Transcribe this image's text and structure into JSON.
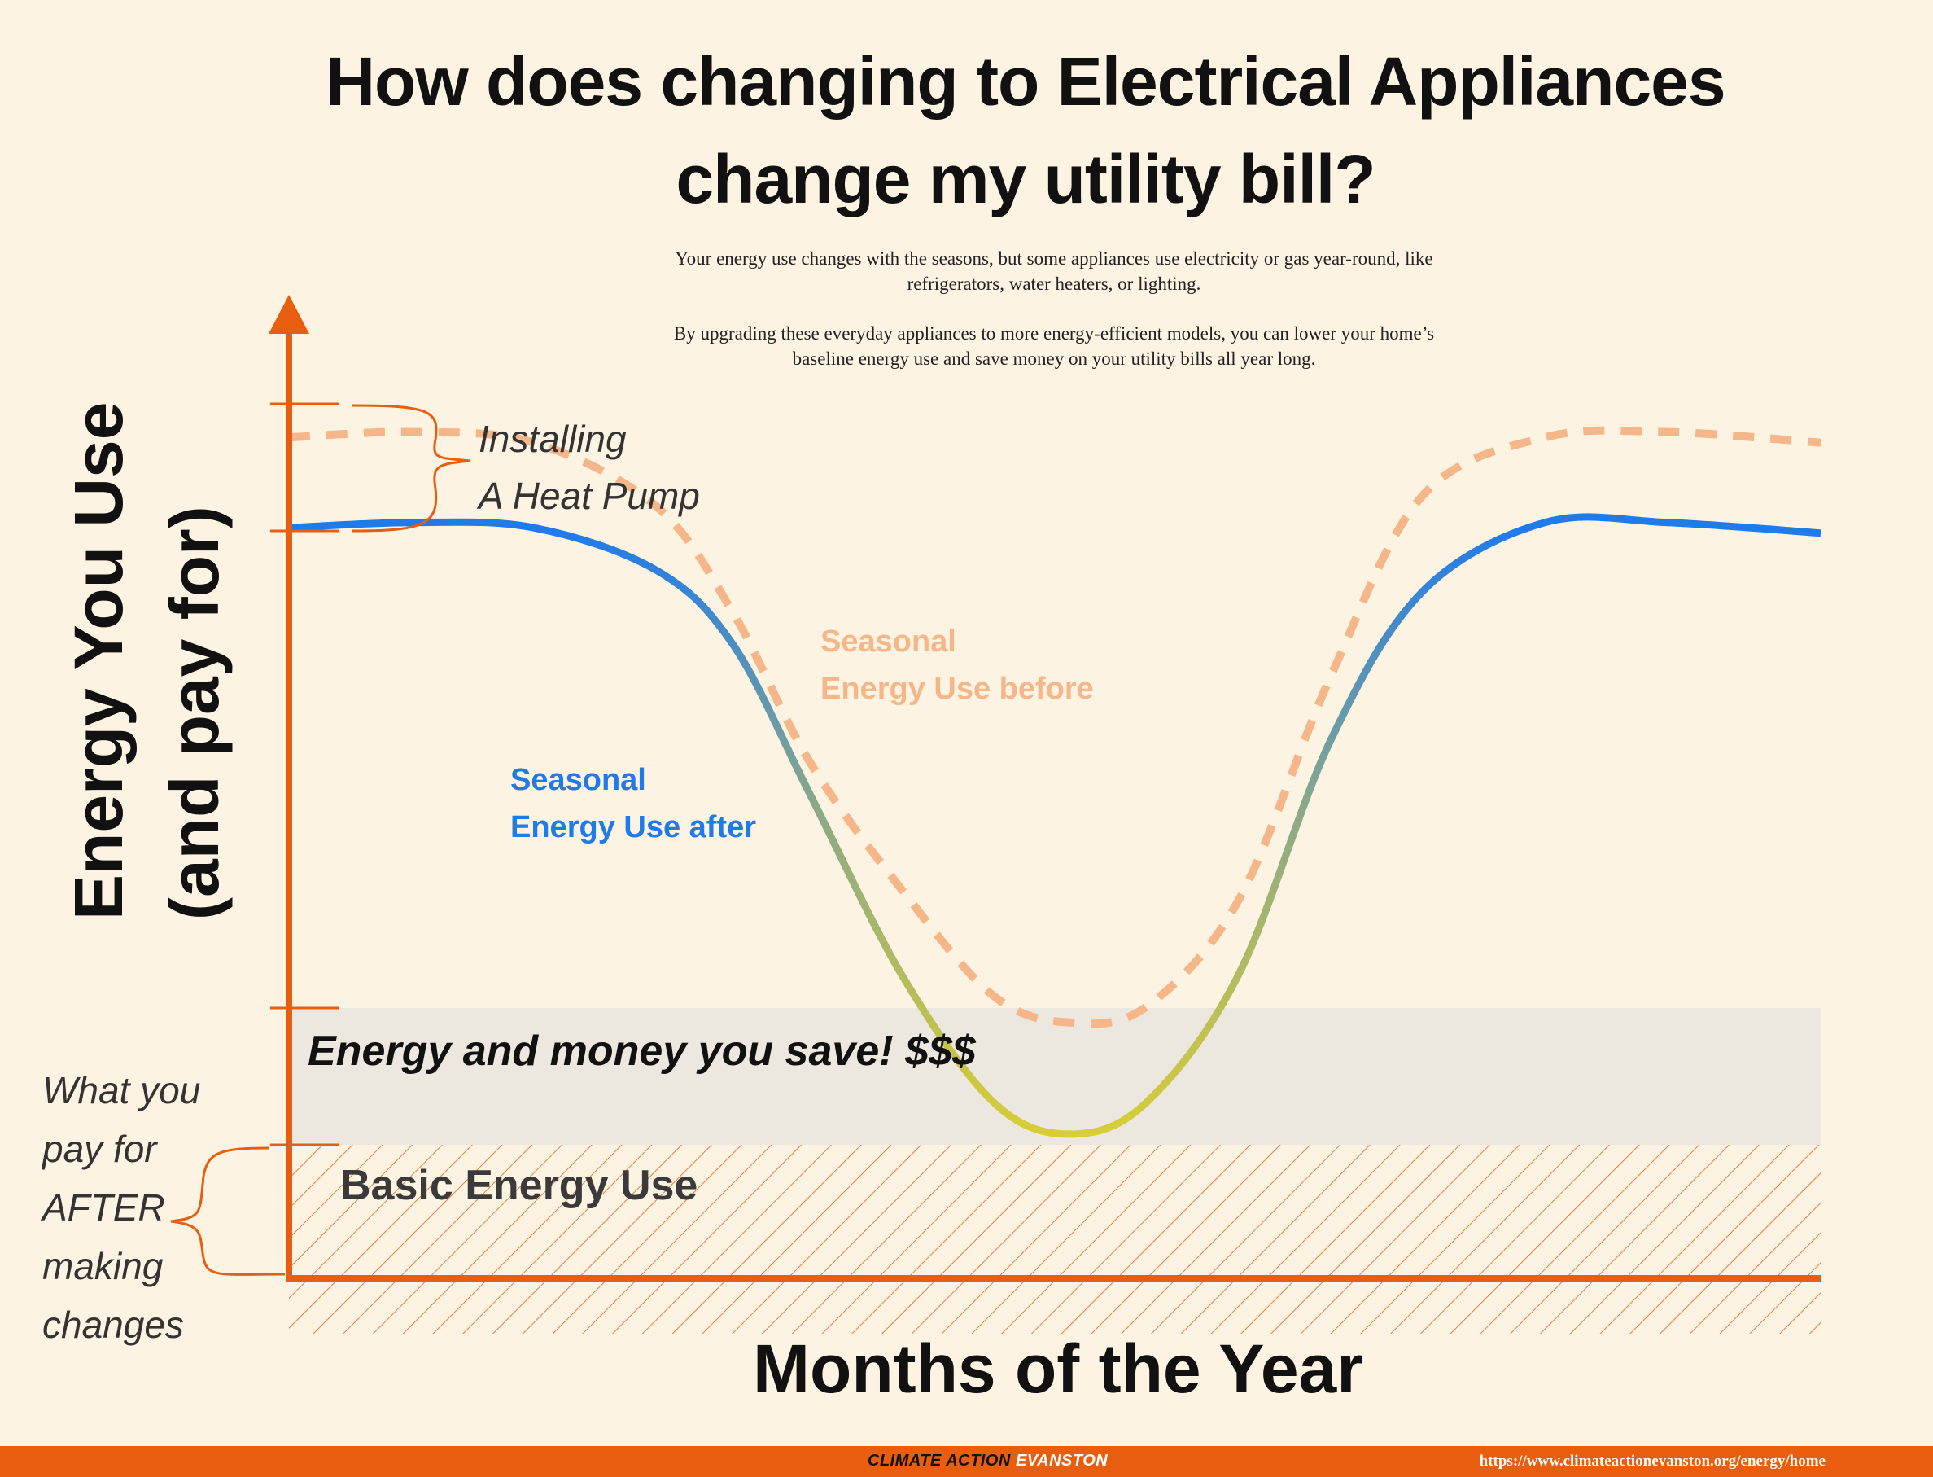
{
  "title": "How does changing to Electrical Appliances change my utility bill?",
  "description": [
    "Your energy use changes with the seasons, but some appliances use electricity or gas year-round, like refrigerators, water heaters, or lighting.",
    "By upgrading these everyday appliances to more energy-efficient models, you can lower your home’s baseline energy use and save money on your utility bills all year long."
  ],
  "chart_data": {
    "type": "line",
    "xlabel": "Months of the Year",
    "ylabel": [
      "Energy You Use",
      "(and pay for)"
    ],
    "x": [
      0.0,
      0.08,
      0.16,
      0.24,
      0.29,
      0.34,
      0.4,
      0.46,
      0.51,
      0.56,
      0.62,
      0.68,
      0.74,
      0.82,
      0.9,
      1.0
    ],
    "series": [
      {
        "name": "Seasonal Energy Use after",
        "values": [
          0.58,
          0.585,
          0.58,
          0.54,
          0.47,
          0.33,
          0.16,
          0.04,
          0.01,
          0.04,
          0.16,
          0.38,
          0.52,
          0.585,
          0.585,
          0.575
        ],
        "style": "solid-gradient",
        "colors": [
          "#1f7bea",
          "#7f9e9a",
          "#d8cf3c"
        ]
      },
      {
        "name": "Seasonal Energy Use before",
        "values": [
          0.665,
          0.67,
          0.66,
          0.6,
          0.5,
          0.36,
          0.24,
          0.14,
          0.115,
          0.13,
          0.23,
          0.44,
          0.61,
          0.665,
          0.67,
          0.66
        ],
        "style": "dashed",
        "color": "#f5b78a"
      }
    ],
    "bands": {
      "basic": {
        "label": "Basic Energy Use",
        "range": [
          0,
          0.0
        ]
      },
      "savings": {
        "label": "Energy and money you save! $$$",
        "range": [
          0.0,
          0.115
        ]
      }
    },
    "annotations": {
      "heat_pump": "Installing\nA Heat Pump",
      "after_pay": "What you\npay for\nAFTER\nmaking\nchanges"
    },
    "colors": {
      "axis": "#e85d0e",
      "after_label": "#1f7bea",
      "before_label": "#f5b78a",
      "hatch": "#f07a3a",
      "band": "#ece7df"
    }
  },
  "footer": {
    "brand_part1": "CLIMATE ACTION ",
    "brand_part2": "EVANSTON",
    "url": "https://www.climateactionevanston.org/energy/home"
  }
}
